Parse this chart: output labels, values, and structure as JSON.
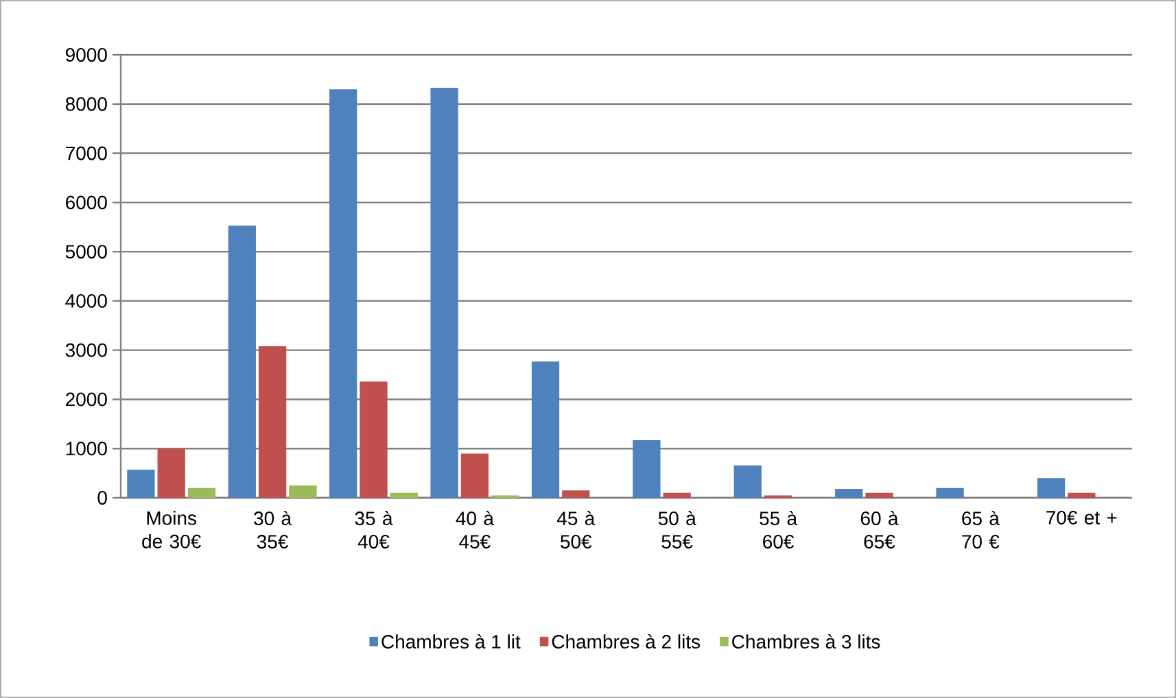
{
  "chart_data": {
    "type": "bar",
    "categories": [
      "Moins de 30€",
      "30 à 35€",
      "35 à 40€",
      "40 à 45€",
      "45 à 50€",
      "50 à 55€",
      "55 à 60€",
      "60 à 65€",
      "65 à 70 €",
      "70€ et +"
    ],
    "series": [
      {
        "name": "Chambres à 1 lit",
        "color": "#4f81bd",
        "values": [
          570,
          5530,
          8300,
          8330,
          2770,
          1170,
          660,
          180,
          200,
          400
        ]
      },
      {
        "name": "Chambres à 2 lits",
        "color": "#c0504d",
        "values": [
          1000,
          3080,
          2360,
          900,
          150,
          100,
          50,
          100,
          0,
          100
        ]
      },
      {
        "name": "Chambres à 3 lits",
        "color": "#9bbb59",
        "values": [
          200,
          250,
          100,
          50,
          0,
          0,
          0,
          0,
          0,
          0
        ]
      }
    ],
    "ylim": [
      0,
      9000
    ],
    "yticks": [
      0,
      1000,
      2000,
      3000,
      4000,
      5000,
      6000,
      7000,
      8000,
      9000
    ],
    "grid": "y",
    "legend": "bottom"
  }
}
